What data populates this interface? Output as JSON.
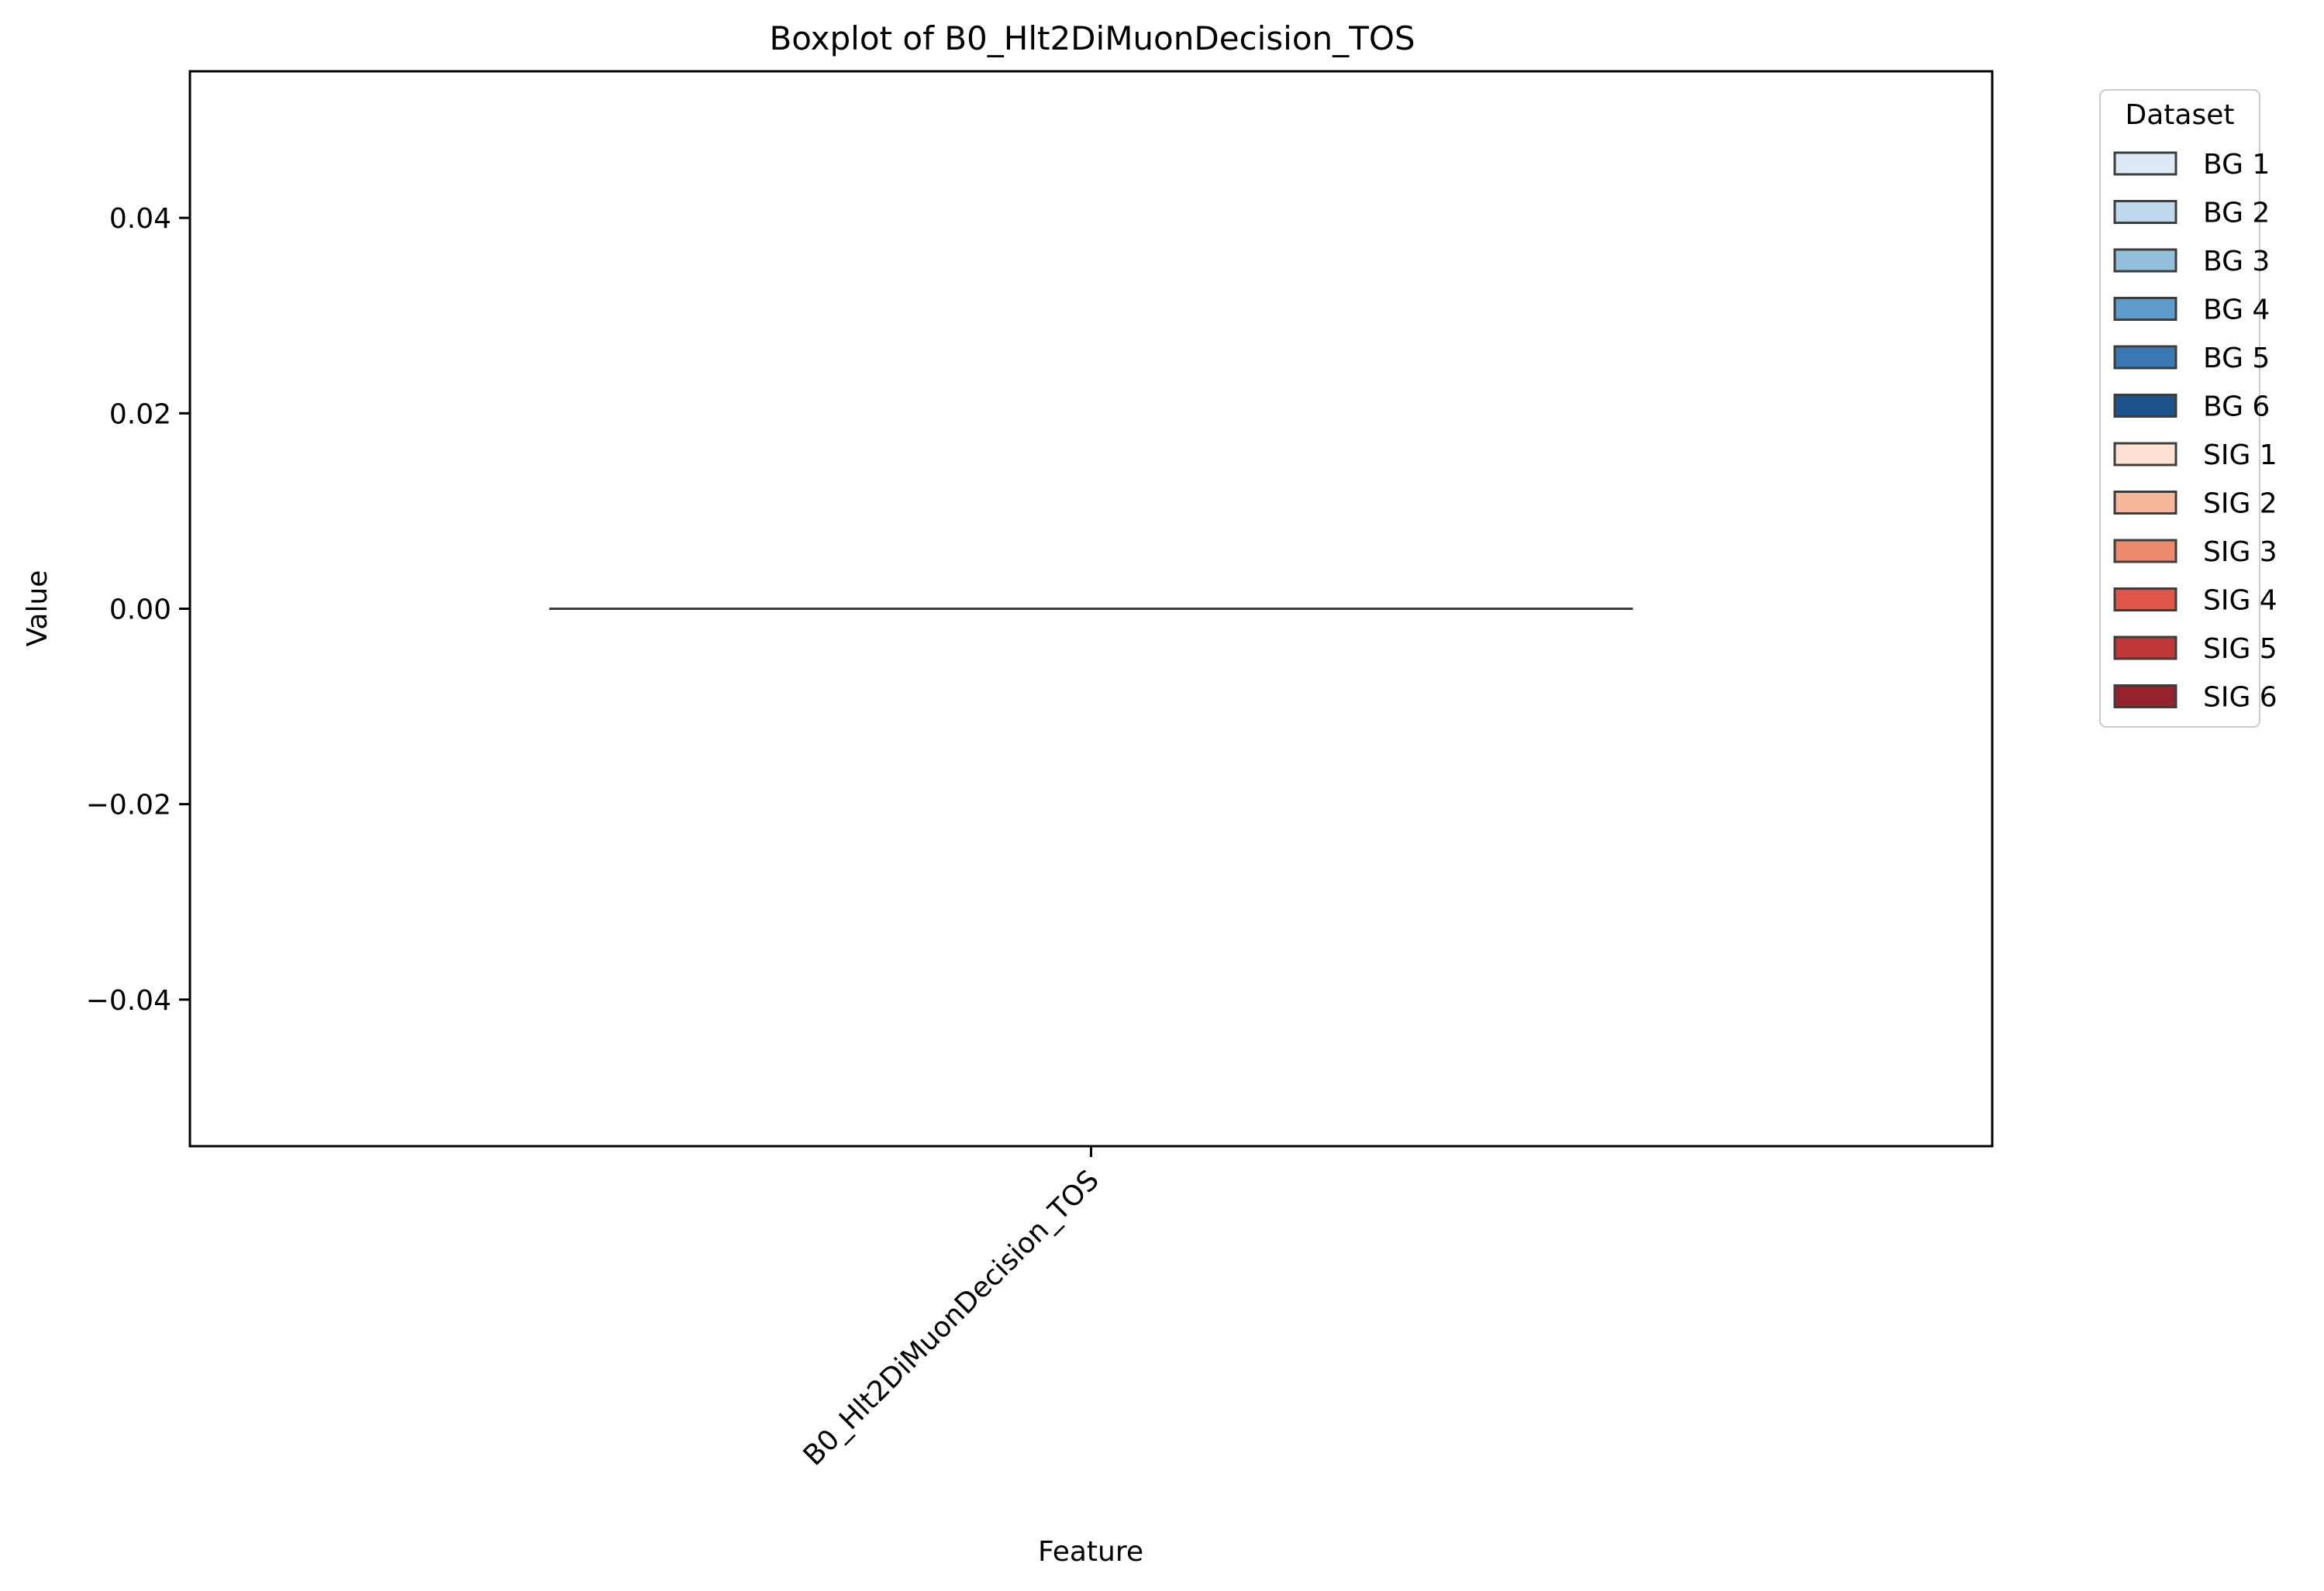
{
  "chart_data": {
    "type": "box",
    "title": "Boxplot of B0_Hlt2DiMuonDecision_TOS",
    "xlabel": "Feature",
    "ylabel": "Value",
    "categories": [
      "B0_Hlt2DiMuonDecision_TOS"
    ],
    "ylim": [
      -0.055,
      0.055
    ],
    "yticks": [
      -0.04,
      -0.02,
      0.0,
      0.02,
      0.04
    ],
    "ytick_labels": [
      "−0.04",
      "−0.02",
      "0.00",
      "0.02",
      "0.04"
    ],
    "grid": false,
    "legend": {
      "title": "Dataset",
      "placement": "outside-top-right"
    },
    "series": [
      {
        "name": "BG 1",
        "color": "#dde9f5",
        "min": 0,
        "q1": 0,
        "median": 0,
        "q3": 0,
        "max": 0
      },
      {
        "name": "BG 2",
        "color": "#bfd8ec",
        "min": 0,
        "q1": 0,
        "median": 0,
        "q3": 0,
        "max": 0
      },
      {
        "name": "BG 3",
        "color": "#93bfdb",
        "min": 0,
        "q1": 0,
        "median": 0,
        "q3": 0,
        "max": 0
      },
      {
        "name": "BG 4",
        "color": "#5e9ccb",
        "min": 0,
        "q1": 0,
        "median": 0,
        "q3": 0,
        "max": 0
      },
      {
        "name": "BG 5",
        "color": "#3a78b3",
        "min": 0,
        "q1": 0,
        "median": 0,
        "q3": 0,
        "max": 0
      },
      {
        "name": "BG 6",
        "color": "#1c538f",
        "min": 0,
        "q1": 0,
        "median": 0,
        "q3": 0,
        "max": 0
      },
      {
        "name": "SIG 1",
        "color": "#fde2d4",
        "min": 0,
        "q1": 0,
        "median": 0,
        "q3": 0,
        "max": 0
      },
      {
        "name": "SIG 2",
        "color": "#f6b69b",
        "min": 0,
        "q1": 0,
        "median": 0,
        "q3": 0,
        "max": 0
      },
      {
        "name": "SIG 3",
        "color": "#ec8a6d",
        "min": 0,
        "q1": 0,
        "median": 0,
        "q3": 0,
        "max": 0
      },
      {
        "name": "SIG 4",
        "color": "#e0564a",
        "min": 0,
        "q1": 0,
        "median": 0,
        "q3": 0,
        "max": 0
      },
      {
        "name": "SIG 5",
        "color": "#c0373a",
        "min": 0,
        "q1": 0,
        "median": 0,
        "q3": 0,
        "max": 0
      },
      {
        "name": "SIG 6",
        "color": "#96222b",
        "min": 0,
        "q1": 0,
        "median": 0,
        "q3": 0,
        "max": 0
      }
    ]
  }
}
